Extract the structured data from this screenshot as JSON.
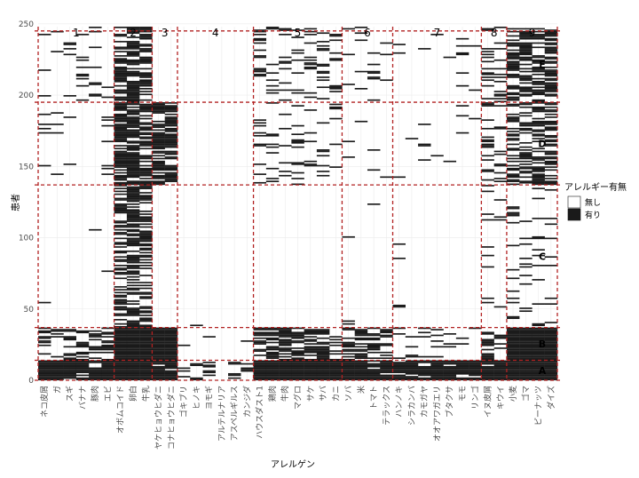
{
  "chart_data": {
    "type": "heatmap",
    "xlabel": "アレルゲン",
    "ylabel": "患者",
    "ylim": [
      0,
      248
    ],
    "yticks": [
      0,
      50,
      100,
      150,
      200,
      250
    ],
    "categories": [
      "ネコ皮屑",
      "ガ",
      "スギ",
      "バナナ",
      "豚肉",
      "エビ",
      "オボムコイド",
      "卵白",
      "牛乳",
      "ヤケヒョウヒダニ",
      "コナヒョウヒダニ",
      "ゴキブリ",
      "ヒノキ",
      "ヨモギ",
      "アルテルナリア",
      "アスペルギルス",
      "カンジダ",
      "ハウスダスト1",
      "鶏肉",
      "牛肉",
      "マグロ",
      "サケ",
      "サバ",
      "カニ",
      "ソバ",
      "米",
      "トマト",
      "テラックス",
      "ハンノキ",
      "シラカンバ",
      "カモガヤ",
      "オオアワガエリ",
      "ブタクサ",
      "モモ",
      "リンゴ",
      "イヌ皮屑",
      "キウイ",
      "小麦",
      "ゴマ",
      "ピーナッツ",
      "ダイズ"
    ],
    "column_clusters": [
      {
        "label": "1",
        "start": 0,
        "end": 5
      },
      {
        "label": "2",
        "start": 6,
        "end": 8
      },
      {
        "label": "3",
        "start": 9,
        "end": 10
      },
      {
        "label": "4",
        "start": 11,
        "end": 16
      },
      {
        "label": "5",
        "start": 17,
        "end": 23
      },
      {
        "label": "6",
        "start": 24,
        "end": 27
      },
      {
        "label": "7",
        "start": 28,
        "end": 34
      },
      {
        "label": "8",
        "start": 35,
        "end": 36
      },
      {
        "label": "9",
        "start": 37,
        "end": 40
      }
    ],
    "row_clusters": [
      {
        "label": "A",
        "start": 0,
        "end": 13
      },
      {
        "label": "B",
        "start": 14,
        "end": 36
      },
      {
        "label": "C",
        "start": 37,
        "end": 136
      },
      {
        "label": "D",
        "start": 137,
        "end": 194
      },
      {
        "label": "E",
        "start": 195,
        "end": 247
      }
    ],
    "legend": {
      "title": "アレルギー有無",
      "entries": [
        {
          "label": "無し",
          "value": 0,
          "color": "#ffffff"
        },
        {
          "label": "有り",
          "value": 1,
          "color": "#1a1a1a"
        }
      ]
    },
    "block_density": {
      "A": [
        0.9,
        0.8,
        0.95,
        0.9,
        0.9,
        0.95,
        0.95,
        1.0,
        0.95,
        0.95,
        0.95,
        0.3,
        0.3,
        0.3,
        0.25,
        0.25,
        0.25,
        1.0,
        1.0,
        1.0,
        1.0,
        1.0,
        1.0,
        1.0,
        0.95,
        0.95,
        0.95,
        0.95,
        0.9,
        0.9,
        0.9,
        0.9,
        0.9,
        0.9,
        0.9,
        0.95,
        0.95,
        1.0,
        1.0,
        1.0,
        1.0
      ],
      "B": [
        0.35,
        0.35,
        0.4,
        0.3,
        0.35,
        0.4,
        1.0,
        1.0,
        1.0,
        1.0,
        1.0,
        0.03,
        0.03,
        0.03,
        0.02,
        0.02,
        0.05,
        0.7,
        0.65,
        0.7,
        0.7,
        0.7,
        0.75,
        0.4,
        0.6,
        0.55,
        0.5,
        0.45,
        0.1,
        0.15,
        0.15,
        0.15,
        0.1,
        0.1,
        0.1,
        0.5,
        0.4,
        1.0,
        1.0,
        1.0,
        1.0
      ],
      "C": [
        0.01,
        0.0,
        0.0,
        0.0,
        0.01,
        0.02,
        0.6,
        0.7,
        0.6,
        0.0,
        0.0,
        0.0,
        0.01,
        0.0,
        0.0,
        0.0,
        0.0,
        0.01,
        0.01,
        0.0,
        0.0,
        0.0,
        0.0,
        0.0,
        0.02,
        0.01,
        0.01,
        0.0,
        0.02,
        0.0,
        0.0,
        0.0,
        0.0,
        0.0,
        0.0,
        0.12,
        0.05,
        0.12,
        0.12,
        0.12,
        0.12
      ],
      "D": [
        0.07,
        0.05,
        0.05,
        0.04,
        0.05,
        0.1,
        0.75,
        0.8,
        0.7,
        0.75,
        0.75,
        0.0,
        0.0,
        0.0,
        0.0,
        0.0,
        0.0,
        0.2,
        0.15,
        0.15,
        0.18,
        0.15,
        0.15,
        0.1,
        0.04,
        0.03,
        0.03,
        0.02,
        0.02,
        0.02,
        0.04,
        0.02,
        0.02,
        0.02,
        0.02,
        0.3,
        0.2,
        0.5,
        0.5,
        0.5,
        0.5
      ],
      "E": [
        0.1,
        0.12,
        0.12,
        0.15,
        0.12,
        0.15,
        0.7,
        0.8,
        0.7,
        0.0,
        0.0,
        0.0,
        0.0,
        0.0,
        0.0,
        0.0,
        0.0,
        0.2,
        0.15,
        0.2,
        0.22,
        0.2,
        0.22,
        0.15,
        0.12,
        0.1,
        0.1,
        0.08,
        0.03,
        0.03,
        0.05,
        0.03,
        0.03,
        0.03,
        0.03,
        0.3,
        0.25,
        0.6,
        0.6,
        0.6,
        0.6
      ]
    }
  }
}
